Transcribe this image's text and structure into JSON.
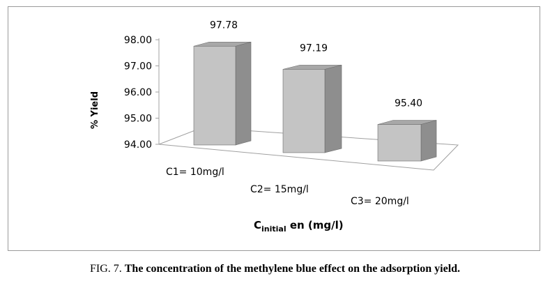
{
  "chart_data": {
    "type": "bar",
    "style": "3d-column",
    "categories": [
      "C1= 10mg/l",
      "C2= 15mg/l",
      "C3= 20mg/l"
    ],
    "values": [
      97.78,
      97.19,
      95.4
    ],
    "data_labels": [
      "97.78",
      "97.19",
      "95.40"
    ],
    "ylabel": "% Yield",
    "xlabel_main": "C",
    "xlabel_sub": "initial",
    "xlabel_rest": " en (mg/l)",
    "ylim": [
      94.0,
      98.0
    ],
    "yticks": [
      "94.00",
      "95.00",
      "96.00",
      "97.00",
      "98.00"
    ],
    "grid": false,
    "legend": "none",
    "colors": {
      "front": "#c4c4c4",
      "side": "#8e8e8e",
      "top": "#a8a8a8",
      "edge": "#6a6a6a"
    }
  },
  "caption": {
    "prefix": "FIG. 7. ",
    "text": "The concentration of the methylene blue effect on the adsorption yield."
  }
}
